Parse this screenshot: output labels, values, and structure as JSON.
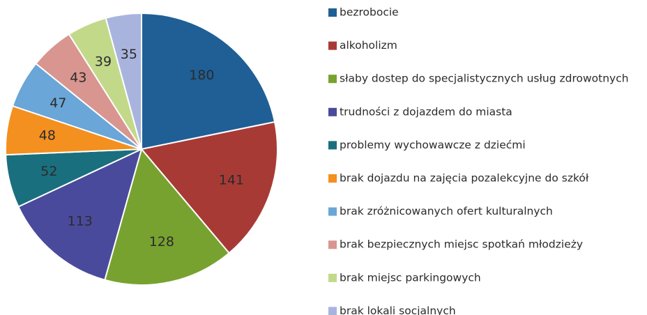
{
  "chart_data": {
    "type": "pie",
    "categories": [
      "bezrobocie",
      "alkoholizm",
      "słaby dostep do specjalistycznych usług zdrowotnych",
      "trudności z dojazdem do miasta",
      "problemy wychowawcze z dziećmi",
      "brak dojazdu na zajęcia pozalekcyjne do szkół",
      "brak zróżnicowanych ofert kulturalnych",
      "brak bezpiecznych miejsc spotkań młodzieży",
      "brak miejsc parkingowych",
      "brak lokali socjalnych"
    ],
    "values": [
      180,
      141,
      128,
      113,
      52,
      48,
      47,
      43,
      39,
      35
    ],
    "colors": [
      "#1f5f96",
      "#a83a36",
      "#78a22f",
      "#4a4a9c",
      "#1a6f7e",
      "#f39020",
      "#6aa6d8",
      "#d9958f",
      "#c2d98a",
      "#a9b4de"
    ],
    "legend": "right"
  }
}
